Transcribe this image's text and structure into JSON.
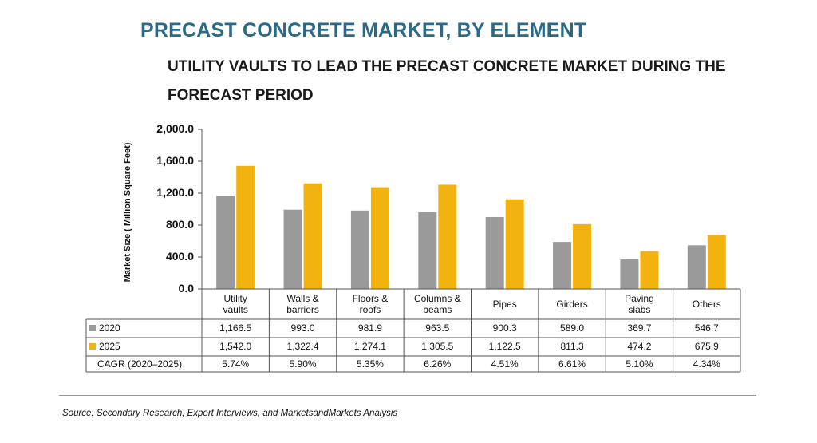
{
  "colors": {
    "title": "#2a6a86",
    "series_2020": "#9a9a9a",
    "series_2025": "#f2b20f",
    "rule": "#b79a2e"
  },
  "header": {
    "title": "PRECAST CONCRETE MARKET, BY ELEMENT",
    "subtitle": "UTILITY VAULTS TO LEAD THE PRECAST CONCRETE MARKET DURING THE FORECAST PERIOD"
  },
  "chart_data": {
    "type": "bar",
    "title": "PRECAST CONCRETE MARKET, BY ELEMENT",
    "subtitle": "UTILITY VAULTS TO LEAD THE PRECAST CONCRETE MARKET DURING THE FORECAST PERIOD",
    "xlabel": "",
    "ylabel": "Market Size ( Million Square Feet)",
    "ylim": [
      0,
      2000
    ],
    "yticks": [
      "2,000.0",
      "1,600.0",
      "1,200.0",
      "800.0",
      "400.0",
      "0.0"
    ],
    "ytick_values": [
      2000,
      1600,
      1200,
      800,
      400,
      0
    ],
    "grid": false,
    "legend": "embedded in data table",
    "categories": [
      "Utility\nvaults",
      "Walls &\nbarriers",
      "Floors &\nroofs",
      "Columns &\nbeams",
      "Pipes",
      "Girders",
      "Paving\nslabs",
      "Others"
    ],
    "series": [
      {
        "name": "2020",
        "values": [
          1166.5,
          993.0,
          981.9,
          963.5,
          900.3,
          589.0,
          369.7,
          546.7
        ],
        "labels": [
          "1,166.5",
          "993.0",
          "981.9",
          "963.5",
          "900.3",
          "589.0",
          "369.7",
          "546.7"
        ]
      },
      {
        "name": "2025",
        "values": [
          1542.0,
          1322.4,
          1274.1,
          1305.5,
          1122.5,
          811.3,
          474.2,
          675.9
        ],
        "labels": [
          "1,542.0",
          "1,322.4",
          "1,274.1",
          "1,305.5",
          "1,122.5",
          "811.3",
          "474.2",
          "675.9"
        ]
      }
    ],
    "cagr": {
      "label": "CAGR (2020–2025)",
      "values": [
        "5.74%",
        "5.90%",
        "5.35%",
        "6.26%",
        "4.51%",
        "6.61%",
        "5.10%",
        "4.34%"
      ]
    }
  },
  "footer": {
    "source": "Source: Secondary Research, Expert Interviews, and MarketsandMarkets Analysis"
  }
}
